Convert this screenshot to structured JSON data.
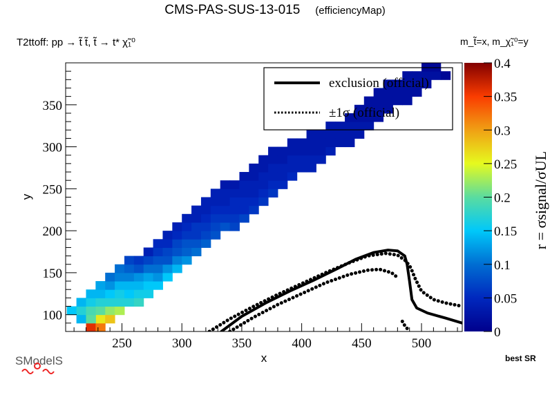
{
  "header": {
    "title": "CMS-PAS-SUS-13-015",
    "subtitle": "(efficiencyMap)",
    "process": "T2ttoff: pp → t̃ t̃, t̃ → t* χ̃₁⁰",
    "masses": "m_t̃=x, m_χ̃₁⁰=y",
    "best_sr": "best SR",
    "logo_text": "SModelS"
  },
  "chart_data": {
    "type": "heatmap",
    "title": "CMS-PAS-SUS-13-015 (efficiencyMap)",
    "xlabel": "x",
    "ylabel": "y",
    "zlabel": "r = σsignal/σUL",
    "xlim": [
      203,
      534
    ],
    "ylim": [
      80,
      400
    ],
    "zlim": [
      0,
      0.4
    ],
    "xticks": [
      250,
      300,
      350,
      400,
      450,
      500
    ],
    "yticks": [
      100,
      150,
      200,
      250,
      300,
      350
    ],
    "zticks": [
      "0",
      "0.05",
      "0.1",
      "0.15",
      "0.2",
      "0.25",
      "0.3",
      "0.35",
      "0.4"
    ],
    "legend": {
      "position": "top-right",
      "entries": [
        {
          "label": "exclusion (official)",
          "style": "solid"
        },
        {
          "label": "±1σ (official)",
          "style": "dotted"
        }
      ]
    },
    "cell_size": [
      8,
      10
    ],
    "cells_description": "diagonal band of cells along y ≈ x - 120 (width ~5 cells), r values high (~0.35) at low x, decreasing to ~0.02 at high x",
    "band": [
      {
        "x": 224,
        "ys": [
          85
        ],
        "r": [
          0.36
        ]
      },
      {
        "x": 232,
        "ys": [
          85,
          95
        ],
        "r": [
          0.32,
          0.26
        ]
      },
      {
        "x": 208,
        "ys": [
          105
        ],
        "r": [
          0.15
        ]
      },
      {
        "x": 216,
        "ys": [
          95,
          105,
          115
        ],
        "r": [
          0.14,
          0.17,
          0.14
        ]
      },
      {
        "x": 224,
        "ys": [
          95,
          105,
          115,
          125
        ],
        "r": [
          0.2,
          0.19,
          0.16,
          0.14
        ]
      },
      {
        "x": 232,
        "ys": [
          105,
          115,
          125,
          135
        ],
        "r": [
          0.2,
          0.17,
          0.14,
          0.13
        ]
      },
      {
        "x": 240,
        "ys": [
          95,
          105,
          115,
          125,
          135,
          145
        ],
        "r": [
          0.28,
          0.22,
          0.17,
          0.15,
          0.12,
          0.1
        ]
      },
      {
        "x": 248,
        "ys": [
          105,
          115,
          125,
          135,
          145,
          155
        ],
        "r": [
          0.23,
          0.17,
          0.16,
          0.14,
          0.11,
          0.1
        ]
      },
      {
        "x": 256,
        "ys": [
          115,
          125,
          135,
          145,
          155,
          165
        ],
        "r": [
          0.17,
          0.15,
          0.14,
          0.11,
          0.09,
          0.07
        ]
      },
      {
        "x": 264,
        "ys": [
          115,
          125,
          135,
          145,
          155,
          165
        ],
        "r": [
          0.18,
          0.16,
          0.14,
          0.12,
          0.08,
          0.06
        ]
      },
      {
        "x": 272,
        "ys": [
          125,
          135,
          145,
          155,
          165,
          175
        ],
        "r": [
          0.16,
          0.15,
          0.13,
          0.1,
          0.07,
          0.04
        ]
      },
      {
        "x": 280,
        "ys": [
          135,
          145,
          155,
          165,
          175,
          185
        ],
        "r": [
          0.15,
          0.12,
          0.1,
          0.08,
          0.06,
          0.05
        ]
      },
      {
        "x": 288,
        "ys": [
          145,
          155,
          165,
          175,
          185,
          195
        ],
        "r": [
          0.15,
          0.12,
          0.08,
          0.07,
          0.05,
          0.04
        ]
      },
      {
        "x": 296,
        "ys": [
          155,
          165,
          175,
          185,
          195,
          205
        ],
        "r": [
          0.14,
          0.11,
          0.08,
          0.07,
          0.05,
          0.04
        ]
      },
      {
        "x": 304,
        "ys": [
          165,
          175,
          185,
          195,
          205,
          215
        ],
        "r": [
          0.12,
          0.09,
          0.08,
          0.06,
          0.05,
          0.04
        ]
      },
      {
        "x": 312,
        "ys": [
          175,
          185,
          195,
          205,
          215,
          225
        ],
        "r": [
          0.1,
          0.08,
          0.06,
          0.06,
          0.04,
          0.04
        ]
      },
      {
        "x": 320,
        "ys": [
          185,
          195,
          205,
          215,
          225,
          235
        ],
        "r": [
          0.09,
          0.07,
          0.06,
          0.05,
          0.04,
          0.04
        ]
      },
      {
        "x": 328,
        "ys": [
          195,
          205,
          215,
          225,
          235,
          245
        ],
        "r": [
          0.08,
          0.07,
          0.06,
          0.05,
          0.04,
          0.04
        ]
      },
      {
        "x": 336,
        "ys": [
          205,
          215,
          225,
          235,
          245,
          255
        ],
        "r": [
          0.08,
          0.06,
          0.05,
          0.04,
          0.04,
          0.03
        ]
      },
      {
        "x": 344,
        "ys": [
          205,
          215,
          225,
          235,
          245,
          255
        ],
        "r": [
          0.07,
          0.06,
          0.05,
          0.05,
          0.04,
          0.03
        ]
      },
      {
        "x": 352,
        "ys": [
          215,
          225,
          235,
          245,
          255,
          265
        ],
        "r": [
          0.07,
          0.05,
          0.05,
          0.04,
          0.04,
          0.03
        ]
      },
      {
        "x": 360,
        "ys": [
          225,
          235,
          245,
          255,
          265,
          275
        ],
        "r": [
          0.06,
          0.05,
          0.04,
          0.04,
          0.03,
          0.03
        ]
      },
      {
        "x": 368,
        "ys": [
          235,
          245,
          255,
          265,
          275,
          285
        ],
        "r": [
          0.06,
          0.05,
          0.04,
          0.04,
          0.03,
          0.03
        ]
      },
      {
        "x": 376,
        "ys": [
          245,
          255,
          265,
          275,
          285,
          295
        ],
        "r": [
          0.06,
          0.05,
          0.04,
          0.04,
          0.03,
          0.03
        ]
      },
      {
        "x": 384,
        "ys": [
          255,
          265,
          275,
          285,
          295
        ],
        "r": [
          0.05,
          0.04,
          0.04,
          0.03,
          0.03
        ]
      },
      {
        "x": 392,
        "ys": [
          265,
          275,
          285,
          295,
          305
        ],
        "r": [
          0.05,
          0.04,
          0.04,
          0.03,
          0.03
        ]
      },
      {
        "x": 400,
        "ys": [
          275,
          285,
          295,
          305
        ],
        "r": [
          0.04,
          0.04,
          0.03,
          0.03
        ]
      },
      {
        "x": 408,
        "ys": [
          275,
          285,
          295,
          305,
          315
        ],
        "r": [
          0.04,
          0.04,
          0.03,
          0.03,
          0.03
        ]
      },
      {
        "x": 416,
        "ys": [
          285,
          295,
          305,
          315
        ],
        "r": [
          0.04,
          0.03,
          0.03,
          0.03
        ]
      },
      {
        "x": 424,
        "ys": [
          295,
          305,
          315,
          325
        ],
        "r": [
          0.04,
          0.03,
          0.03,
          0.03
        ]
      },
      {
        "x": 432,
        "ys": [
          305,
          315,
          325
        ],
        "r": [
          0.03,
          0.03,
          0.03
        ]
      },
      {
        "x": 440,
        "ys": [
          305,
          315,
          325,
          335
        ],
        "r": [
          0.03,
          0.03,
          0.03,
          0.02
        ]
      },
      {
        "x": 448,
        "ys": [
          315,
          325,
          335,
          345
        ],
        "r": [
          0.03,
          0.03,
          0.02,
          0.02
        ]
      },
      {
        "x": 456,
        "ys": [
          325,
          335,
          345,
          355
        ],
        "r": [
          0.03,
          0.02,
          0.02,
          0.02
        ]
      },
      {
        "x": 464,
        "ys": [
          335,
          345,
          355,
          365
        ],
        "r": [
          0.02,
          0.02,
          0.02,
          0.02
        ]
      },
      {
        "x": 472,
        "ys": [
          345,
          355,
          365,
          375
        ],
        "r": [
          0.02,
          0.02,
          0.02,
          0.02
        ]
      },
      {
        "x": 480,
        "ys": [
          355,
          365,
          375
        ],
        "r": [
          0.02,
          0.02,
          0.02
        ]
      },
      {
        "x": 488,
        "ys": [
          355,
          365,
          375,
          385
        ],
        "r": [
          0.02,
          0.02,
          0.02,
          0.02
        ]
      },
      {
        "x": 496,
        "ys": [
          365,
          375,
          385
        ],
        "r": [
          0.02,
          0.02,
          0.02
        ]
      },
      {
        "x": 504,
        "ys": [
          375,
          385,
          395
        ],
        "r": [
          0.02,
          0.02,
          0.01
        ]
      },
      {
        "x": 512,
        "ys": [
          385,
          395
        ],
        "r": [
          0.02,
          0.01
        ]
      },
      {
        "x": 520,
        "ys": [
          385
        ],
        "r": [
          0.01
        ]
      }
    ],
    "exclusion": [
      [
        333,
        80
      ],
      [
        350,
        98
      ],
      [
        370,
        114
      ],
      [
        390,
        128
      ],
      [
        410,
        141
      ],
      [
        430,
        155
      ],
      [
        445,
        166
      ],
      [
        460,
        174
      ],
      [
        472,
        177
      ],
      [
        480,
        176
      ],
      [
        486,
        170
      ],
      [
        488,
        160
      ],
      [
        490,
        140
      ],
      [
        492,
        118
      ],
      [
        496,
        108
      ],
      [
        505,
        102
      ],
      [
        520,
        96
      ],
      [
        534,
        90
      ]
    ],
    "exclusion_plus": [
      [
        323,
        80
      ],
      [
        340,
        95
      ],
      [
        360,
        110
      ],
      [
        380,
        124
      ],
      [
        400,
        137
      ],
      [
        420,
        150
      ],
      [
        440,
        162
      ],
      [
        455,
        170
      ],
      [
        470,
        173
      ],
      [
        480,
        171
      ],
      [
        487,
        164
      ],
      [
        491,
        156
      ],
      [
        495,
        142
      ],
      [
        500,
        128
      ],
      [
        510,
        118
      ],
      [
        520,
        114
      ],
      [
        534,
        110
      ]
    ],
    "exclusion_minus": [
      [
        340,
        80
      ],
      [
        360,
        97
      ],
      [
        380,
        112
      ],
      [
        400,
        125
      ],
      [
        420,
        138
      ],
      [
        440,
        148
      ],
      [
        455,
        153
      ],
      [
        465,
        154
      ],
      [
        475,
        150
      ],
      [
        481,
        143
      ]
    ],
    "exclusion_minus_tail": [
      [
        484,
        92
      ],
      [
        486,
        87
      ],
      [
        490,
        80
      ]
    ]
  }
}
